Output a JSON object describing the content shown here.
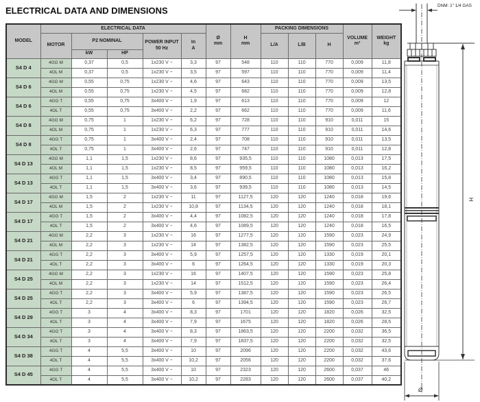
{
  "title": "ELECTRICAL DATA AND DIMENSIONS",
  "table": {
    "headers": {
      "model": "MODEL",
      "electrical_data": "ELECTRICAL DATA",
      "motor": "MOTOR",
      "p2_nominal": "P2 NOMINAL",
      "kw": "kW",
      "hp": "HP",
      "power_input_l1": "POWER INPUT",
      "power_input_l2": "50 Hz",
      "in_l1": "In",
      "in_l2": "A",
      "dia_l1": "Ø",
      "dia_l2": "mm",
      "h_l1": "H",
      "h_l2": "mm",
      "packing": "PACKING DIMENSIONS",
      "la": "L/A",
      "lb": "L/B",
      "h_pack": "H",
      "volume_l1": "VOLUME",
      "volume_l2": "m³",
      "weight_l1": "WEIGHT",
      "weight_l2": "kg"
    },
    "groups": [
      {
        "model": "S4 D 4",
        "rows": [
          [
            "4GG M",
            "0,37",
            "0,5",
            "1x230 V ~",
            "3,3",
            "97",
            "548",
            "110",
            "110",
            "770",
            "0,009",
            "11,8"
          ],
          [
            "4OL M",
            "0,37",
            "0,5",
            "1x230 V ~",
            "3,5",
            "97",
            "597",
            "110",
            "110",
            "770",
            "0,009",
            "11,4"
          ]
        ]
      },
      {
        "model": "S4 D 6",
        "rows": [
          [
            "4GG M",
            "0,55",
            "0,75",
            "1x230 V ~",
            "4,6",
            "97",
            "643",
            "110",
            "110",
            "770",
            "0,009",
            "13,5"
          ],
          [
            "4OL M",
            "0,55",
            "0,75",
            "1x230 V ~",
            "4,5",
            "97",
            "682",
            "110",
            "110",
            "770",
            "0,009",
            "12,8"
          ]
        ]
      },
      {
        "model": "S4 D 6",
        "rows": [
          [
            "4GG T",
            "0,55",
            "0,75",
            "3x400 V ~",
            "1,9",
            "97",
            "613",
            "110",
            "110",
            "770",
            "0,009",
            "12"
          ],
          [
            "4OL T",
            "0,55",
            "0,75",
            "3x400 V ~",
            "2,2",
            "97",
            "662",
            "110",
            "110",
            "770",
            "0,009",
            "11,6"
          ]
        ]
      },
      {
        "model": "S4 D 8",
        "rows": [
          [
            "4GG M",
            "0,75",
            "1",
            "1x230 V ~",
            "6,2",
            "97",
            "728",
            "110",
            "110",
            "910",
            "0,011",
            "15"
          ],
          [
            "4OL M",
            "0,75",
            "1",
            "1x230 V ~",
            "6,3",
            "97",
            "777",
            "110",
            "110",
            "910",
            "0,011",
            "14,6"
          ]
        ]
      },
      {
        "model": "S4 D 8",
        "rows": [
          [
            "4GG T",
            "0,75",
            "1",
            "3x400 V ~",
            "2,4",
            "97",
            "708",
            "110",
            "110",
            "910",
            "0,011",
            "13,5"
          ],
          [
            "4OL T",
            "0,75",
            "1",
            "3x400 V ~",
            "2,6",
            "97",
            "747",
            "110",
            "110",
            "910",
            "0,011",
            "12,8"
          ]
        ]
      },
      {
        "model": "S4 D 13",
        "rows": [
          [
            "4GG M",
            "1,1",
            "1,5",
            "1x230 V ~",
            "8,6",
            "97",
            "935,5",
            "110",
            "110",
            "1080",
            "0,013",
            "17,5"
          ],
          [
            "4OL M",
            "1,1",
            "1,5",
            "1x230 V ~",
            "8,5",
            "97",
            "959,5",
            "110",
            "110",
            "1080",
            "0,013",
            "16,2"
          ]
        ]
      },
      {
        "model": "S4 D 13",
        "rows": [
          [
            "4GG T",
            "1,1",
            "1,5",
            "3x400 V ~",
            "3,4",
            "97",
            "890,5",
            "110",
            "110",
            "1080",
            "0,013",
            "15,8"
          ],
          [
            "4OL T",
            "1,1",
            "1,5",
            "3x400 V ~",
            "3,6",
            "97",
            "939,5",
            "110",
            "110",
            "1080",
            "0,013",
            "14,5"
          ]
        ]
      },
      {
        "model": "S4 D 17",
        "rows": [
          [
            "4GG M",
            "1,5",
            "2",
            "1x230 V ~",
            "11",
            "97",
            "1127,5",
            "120",
            "120",
            "1240",
            "0,018",
            "19,6"
          ],
          [
            "4OL M",
            "1,5",
            "2",
            "1x230 V ~",
            "10,8",
            "97",
            "1134,5",
            "120",
            "120",
            "1240",
            "0,018",
            "18,1"
          ]
        ]
      },
      {
        "model": "S4 D 17",
        "rows": [
          [
            "4GG T",
            "1,5",
            "2",
            "3x400 V ~",
            "4,4",
            "97",
            "1082,5",
            "120",
            "120",
            "1240",
            "0,018",
            "17,8"
          ],
          [
            "4OL T",
            "1,5",
            "2",
            "3x400 V ~",
            "4,6",
            "97",
            "1089,5",
            "120",
            "120",
            "1240",
            "0,018",
            "16,5"
          ]
        ]
      },
      {
        "model": "S4 D 21",
        "rows": [
          [
            "4GG M",
            "2,2",
            "3",
            "1x230 V ~",
            "16",
            "97",
            "1277,5",
            "120",
            "120",
            "1590",
            "0,023",
            "24,9"
          ],
          [
            "4OL M",
            "2,2",
            "3",
            "1x230 V ~",
            "14",
            "97",
            "1382,5",
            "120",
            "120",
            "1590",
            "0,023",
            "25,5"
          ]
        ]
      },
      {
        "model": "S4 D 21",
        "rows": [
          [
            "4GG T",
            "2,2",
            "3",
            "3x400 V ~",
            "5,9",
            "97",
            "1257,5",
            "120",
            "120",
            "1330",
            "0,019",
            "20,1"
          ],
          [
            "4OL T",
            "2,2",
            "3",
            "3x400 V ~",
            "6",
            "97",
            "1264,5",
            "120",
            "120",
            "1330",
            "0,019",
            "20,3"
          ]
        ]
      },
      {
        "model": "S4 D 25",
        "rows": [
          [
            "4GG M",
            "2,2",
            "3",
            "1x230 V ~",
            "16",
            "97",
            "1407,5",
            "120",
            "120",
            "1590",
            "0,023",
            "25,8"
          ],
          [
            "4OL M",
            "2,2",
            "3",
            "1x230 V ~",
            "14",
            "97",
            "1512,5",
            "120",
            "120",
            "1590",
            "0,023",
            "26,4"
          ]
        ]
      },
      {
        "model": "S4 D 25",
        "rows": [
          [
            "4GG T",
            "2,2",
            "3",
            "3x400 V ~",
            "5,9",
            "97",
            "1387,5",
            "120",
            "120",
            "1590",
            "0,023",
            "26,5"
          ],
          [
            "4OL T",
            "2,2",
            "3",
            "3x400 V ~",
            "6",
            "97",
            "1394,5",
            "120",
            "120",
            "1590",
            "0,023",
            "26,7"
          ]
        ]
      },
      {
        "model": "S4 D 29",
        "rows": [
          [
            "4GG T",
            "3",
            "4",
            "3x400 V ~",
            "8,3",
            "97",
            "1701",
            "120",
            "120",
            "1820",
            "0,026",
            "32,5"
          ],
          [
            "4OL T",
            "3",
            "4",
            "3x400 V ~",
            "7,9",
            "97",
            "1675",
            "120",
            "120",
            "1820",
            "0,026",
            "28,5"
          ]
        ]
      },
      {
        "model": "S4 D 34",
        "rows": [
          [
            "4GG T",
            "3",
            "4",
            "3x400 V ~",
            "8,3",
            "97",
            "1863,5",
            "120",
            "120",
            "2200",
            "0,032",
            "36,5"
          ],
          [
            "4OL T",
            "3",
            "4",
            "3x400 V ~",
            "7,9",
            "97",
            "1837,5",
            "120",
            "120",
            "2200",
            "0,032",
            "32,5"
          ]
        ]
      },
      {
        "model": "S4 D 38",
        "rows": [
          [
            "4GG T",
            "4",
            "5,5",
            "3x400 V ~",
            "10",
            "97",
            "2096",
            "120",
            "120",
            "2200",
            "0,032",
            "43,6"
          ],
          [
            "4OL T",
            "4",
            "5,5",
            "3x400 V ~",
            "10,2",
            "97",
            "2056",
            "120",
            "120",
            "2200",
            "0,032",
            "37,6"
          ]
        ]
      },
      {
        "model": "S4 D 45",
        "rows": [
          [
            "4GG T",
            "4",
            "5,5",
            "3x400 V ~",
            "10",
            "97",
            "2323",
            "120",
            "120",
            "2600",
            "0,037",
            "46"
          ],
          [
            "4OL T",
            "4",
            "5,5",
            "3x400 V ~",
            "10,2",
            "97",
            "2283",
            "120",
            "120",
            "2600",
            "0,037",
            "40,2"
          ]
        ]
      }
    ]
  },
  "diagram": {
    "dnm_label": "DNM: 1\" 1/4 GAS",
    "h_label": "H",
    "diameter_label": "Ø"
  },
  "colors": {
    "header_bg": "#c7c7c7",
    "model_bg": "#c6d8c6",
    "border": "#6a6a6a",
    "line": "#333333"
  }
}
